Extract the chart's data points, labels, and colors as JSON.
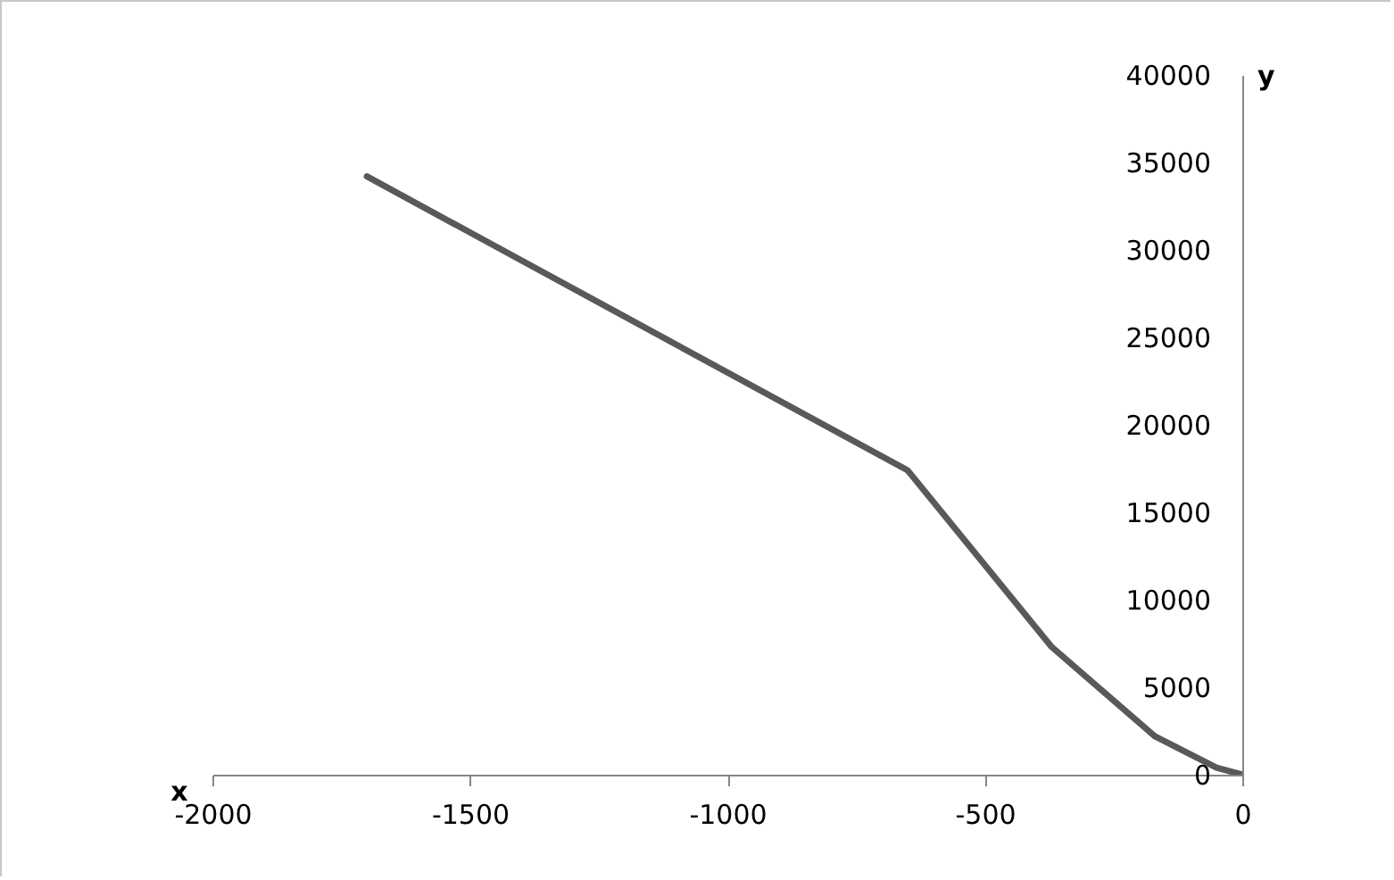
{
  "chart_data": {
    "type": "line",
    "xlabel": "x",
    "ylabel": "y",
    "x": [
      -1700,
      -650,
      -370,
      -170,
      -50,
      0
    ],
    "series": [
      {
        "color": "#595959",
        "values": [
          34200,
          17400,
          7300,
          2200,
          400,
          0
        ]
      }
    ],
    "xlim": [
      -2000,
      0
    ],
    "xticks": [
      -2000,
      -1500,
      -1000,
      -500,
      0
    ],
    "ylim": [
      0,
      40000
    ],
    "yticks": [
      0,
      5000,
      10000,
      15000,
      20000,
      25000,
      30000,
      35000,
      40000
    ],
    "grid": false,
    "marker": "none",
    "line_style": "solid"
  }
}
